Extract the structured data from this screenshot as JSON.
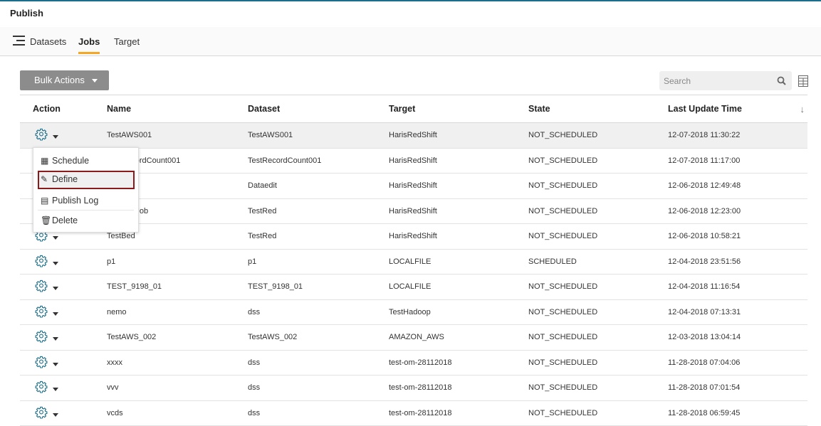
{
  "page": {
    "title": "Publish"
  },
  "tabs": [
    {
      "label": "Datasets"
    },
    {
      "label": "Jobs",
      "active": true
    },
    {
      "label": "Target"
    }
  ],
  "toolbar": {
    "bulk_actions": "Bulk Actions",
    "search_placeholder": "Search"
  },
  "columns": [
    "Action",
    "Name",
    "Dataset",
    "Target",
    "State",
    "Last Update Time"
  ],
  "sort": {
    "column": "Last Update Time",
    "direction": "descending"
  },
  "rows": [
    {
      "name": "TestAWS001",
      "dataset": "TestAWS001",
      "target": "HarisRedShift",
      "state": "NOT_SCHEDULED",
      "time": "12-07-2018 11:30:22"
    },
    {
      "name": "TestRecordCount001",
      "dataset": "TestRecordCount001",
      "target": "HarisRedShift",
      "state": "NOT_SCHEDULED",
      "time": "12-07-2018 11:17:00"
    },
    {
      "name": "",
      "dataset": "Dataedit",
      "target": "HarisRedShift",
      "state": "NOT_SCHEDULED",
      "time": "12-06-2018 12:49:48"
    },
    {
      "name": "TestRedJob",
      "dataset": "TestRed",
      "target": "HarisRedShift",
      "state": "NOT_SCHEDULED",
      "time": "12-06-2018 12:23:00"
    },
    {
      "name": "TestBed",
      "dataset": "TestRed",
      "target": "HarisRedShift",
      "state": "NOT_SCHEDULED",
      "time": "12-06-2018 10:58:21"
    },
    {
      "name": "p1",
      "dataset": "p1",
      "target": "LOCALFILE",
      "state": "SCHEDULED",
      "time": "12-04-2018 23:51:56"
    },
    {
      "name": "TEST_9198_01",
      "dataset": "TEST_9198_01",
      "target": "LOCALFILE",
      "state": "NOT_SCHEDULED",
      "time": "12-04-2018 11:16:54"
    },
    {
      "name": "nemo",
      "dataset": "dss",
      "target": "TestHadoop",
      "state": "NOT_SCHEDULED",
      "time": "12-04-2018 07:13:31"
    },
    {
      "name": "TestAWS_002",
      "dataset": "TestAWS_002",
      "target": "AMAZON_AWS",
      "state": "NOT_SCHEDULED",
      "time": "12-03-2018 13:04:14"
    },
    {
      "name": "xxxx",
      "dataset": "dss",
      "target": "test-om-28112018",
      "state": "NOT_SCHEDULED",
      "time": "11-28-2018 07:04:06"
    },
    {
      "name": "vvv",
      "dataset": "dss",
      "target": "test-om-28112018",
      "state": "NOT_SCHEDULED",
      "time": "11-28-2018 07:01:54"
    },
    {
      "name": "vcds",
      "dataset": "dss",
      "target": "test-om-28112018",
      "state": "NOT_SCHEDULED",
      "time": "11-28-2018 06:59:45"
    }
  ],
  "action_menu": {
    "items": [
      {
        "label": "Schedule",
        "icon": "calendar-icon"
      },
      {
        "label": "Define",
        "icon": "pencil-icon",
        "highlighted": true
      },
      {
        "label": "Publish Log",
        "icon": "log-icon"
      },
      {
        "label": "Delete",
        "icon": "trash-icon"
      }
    ]
  },
  "colors": {
    "accent": "#f5a623",
    "gear": "#1c6f8a",
    "highlight_border": "#8b1a1a",
    "top_border": "#1c6f8a"
  }
}
